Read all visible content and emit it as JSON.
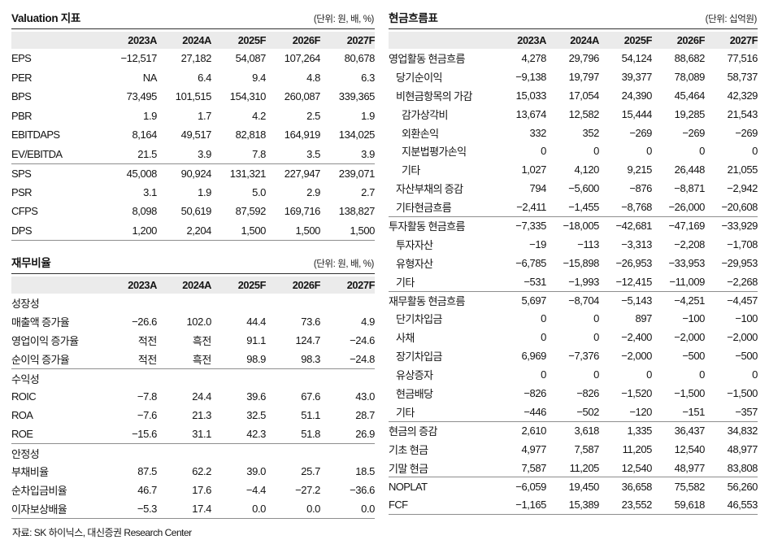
{
  "tables": {
    "valuation": {
      "title": "Valuation 지표",
      "unit": "(단위: 원, 배, %)",
      "columns": [
        "2023A",
        "2024A",
        "2025F",
        "2026F",
        "2027F"
      ],
      "rows": [
        {
          "label": "EPS",
          "values": [
            "−12,517",
            "27,182",
            "54,087",
            "107,264",
            "80,678"
          ]
        },
        {
          "label": "PER",
          "values": [
            "NA",
            "6.4",
            "9.4",
            "4.8",
            "6.3"
          ]
        },
        {
          "label": "BPS",
          "values": [
            "73,495",
            "101,515",
            "154,310",
            "260,087",
            "339,365"
          ]
        },
        {
          "label": "PBR",
          "values": [
            "1.9",
            "1.7",
            "4.2",
            "2.5",
            "1.9"
          ]
        },
        {
          "label": "EBITDAPS",
          "values": [
            "8,164",
            "49,517",
            "82,818",
            "164,919",
            "134,025"
          ]
        },
        {
          "label": "EV/EBITDA",
          "values": [
            "21.5",
            "3.9",
            "7.8",
            "3.5",
            "3.9"
          ]
        },
        {
          "label": "SPS",
          "sep": true,
          "values": [
            "45,008",
            "90,924",
            "131,321",
            "227,947",
            "239,071"
          ]
        },
        {
          "label": "PSR",
          "values": [
            "3.1",
            "1.9",
            "5.0",
            "2.9",
            "2.7"
          ]
        },
        {
          "label": "CFPS",
          "values": [
            "8,098",
            "50,619",
            "87,592",
            "169,716",
            "138,827"
          ]
        },
        {
          "label": "DPS",
          "values": [
            "1,200",
            "2,204",
            "1,500",
            "1,500",
            "1,500"
          ]
        }
      ]
    },
    "ratios": {
      "title": "재무비율",
      "unit": "(단위: 원, 배, %)",
      "columns": [
        "2023A",
        "2024A",
        "2025F",
        "2026F",
        "2027F"
      ],
      "rows": [
        {
          "label": "성장성",
          "values": []
        },
        {
          "label": "매출액 증가율",
          "values": [
            "−26.6",
            "102.0",
            "44.4",
            "73.6",
            "4.9"
          ]
        },
        {
          "label": "영업이익 증가율",
          "values": [
            "적전",
            "흑전",
            "91.1",
            "124.7",
            "−24.6"
          ]
        },
        {
          "label": "순이익 증가율",
          "values": [
            "적전",
            "흑전",
            "98.9",
            "98.3",
            "−24.8"
          ]
        },
        {
          "label": "수익성",
          "sep": true,
          "values": []
        },
        {
          "label": "ROIC",
          "values": [
            "−7.8",
            "24.4",
            "39.6",
            "67.6",
            "43.0"
          ]
        },
        {
          "label": "ROA",
          "values": [
            "−7.6",
            "21.3",
            "32.5",
            "51.1",
            "28.7"
          ]
        },
        {
          "label": "ROE",
          "values": [
            "−15.6",
            "31.1",
            "42.3",
            "51.8",
            "26.9"
          ]
        },
        {
          "label": "안정성",
          "sep": true,
          "values": []
        },
        {
          "label": "부채비율",
          "values": [
            "87.5",
            "62.2",
            "39.0",
            "25.7",
            "18.5"
          ]
        },
        {
          "label": "순차입금비율",
          "values": [
            "46.7",
            "17.6",
            "−4.4",
            "−27.2",
            "−36.6"
          ]
        },
        {
          "label": "이자보상배율",
          "values": [
            "−5.3",
            "17.4",
            "0.0",
            "0.0",
            "0.0"
          ]
        }
      ]
    },
    "cashflow": {
      "title": "현금흐름표",
      "unit": "(단위: 십억원)",
      "columns": [
        "2023A",
        "2024A",
        "2025F",
        "2026F",
        "2027F"
      ],
      "rows": [
        {
          "label": "영업활동 현금흐름",
          "indent": 0,
          "values": [
            "4,278",
            "29,796",
            "54,124",
            "88,682",
            "77,516"
          ]
        },
        {
          "label": "당기순이익",
          "indent": 1,
          "values": [
            "−9,138",
            "19,797",
            "39,377",
            "78,089",
            "58,737"
          ]
        },
        {
          "label": "비현금항목의 가감",
          "indent": 1,
          "values": [
            "15,033",
            "17,054",
            "24,390",
            "45,464",
            "42,329"
          ]
        },
        {
          "label": "감가상각비",
          "indent": 2,
          "values": [
            "13,674",
            "12,582",
            "15,444",
            "19,285",
            "21,543"
          ]
        },
        {
          "label": "외환손익",
          "indent": 2,
          "values": [
            "332",
            "352",
            "−269",
            "−269",
            "−269"
          ]
        },
        {
          "label": "지분법평가손익",
          "indent": 2,
          "values": [
            "0",
            "0",
            "0",
            "0",
            "0"
          ]
        },
        {
          "label": "기타",
          "indent": 2,
          "values": [
            "1,027",
            "4,120",
            "9,215",
            "26,448",
            "21,055"
          ]
        },
        {
          "label": "자산부채의 증감",
          "indent": 1,
          "values": [
            "794",
            "−5,600",
            "−876",
            "−8,871",
            "−2,942"
          ]
        },
        {
          "label": "기타현금흐름",
          "indent": 1,
          "values": [
            "−2,411",
            "−1,455",
            "−8,768",
            "−26,000",
            "−20,608"
          ]
        },
        {
          "label": "투자활동 현금흐름",
          "indent": 0,
          "sep": true,
          "values": [
            "−7,335",
            "−18,005",
            "−42,681",
            "−47,169",
            "−33,929"
          ]
        },
        {
          "label": "투자자산",
          "indent": 1,
          "values": [
            "−19",
            "−113",
            "−3,313",
            "−2,208",
            "−1,708"
          ]
        },
        {
          "label": "유형자산",
          "indent": 1,
          "values": [
            "−6,785",
            "−15,898",
            "−26,953",
            "−33,953",
            "−29,953"
          ]
        },
        {
          "label": "기타",
          "indent": 1,
          "values": [
            "−531",
            "−1,993",
            "−12,415",
            "−11,009",
            "−2,268"
          ]
        },
        {
          "label": "재무활동 현금흐름",
          "indent": 0,
          "sep": true,
          "values": [
            "5,697",
            "−8,704",
            "−5,143",
            "−4,251",
            "−4,457"
          ]
        },
        {
          "label": "단기차입금",
          "indent": 1,
          "values": [
            "0",
            "0",
            "897",
            "−100",
            "−100"
          ]
        },
        {
          "label": "사채",
          "indent": 1,
          "values": [
            "0",
            "0",
            "−2,400",
            "−2,000",
            "−2,000"
          ]
        },
        {
          "label": "장기차입금",
          "indent": 1,
          "values": [
            "6,969",
            "−7,376",
            "−2,000",
            "−500",
            "−500"
          ]
        },
        {
          "label": "유상증자",
          "indent": 1,
          "values": [
            "0",
            "0",
            "0",
            "0",
            "0"
          ]
        },
        {
          "label": "현금배당",
          "indent": 1,
          "values": [
            "−826",
            "−826",
            "−1,520",
            "−1,500",
            "−1,500"
          ]
        },
        {
          "label": "기타",
          "indent": 1,
          "values": [
            "−446",
            "−502",
            "−120",
            "−151",
            "−357"
          ]
        },
        {
          "label": "현금의 증감",
          "indent": 0,
          "sep": true,
          "values": [
            "2,610",
            "3,618",
            "1,335",
            "36,437",
            "34,832"
          ]
        },
        {
          "label": "기초 현금",
          "indent": 0,
          "values": [
            "4,977",
            "7,587",
            "11,205",
            "12,540",
            "48,977"
          ]
        },
        {
          "label": "기말 현금",
          "indent": 0,
          "values": [
            "7,587",
            "11,205",
            "12,540",
            "48,977",
            "83,808"
          ]
        },
        {
          "label": "NOPLAT",
          "indent": 0,
          "sep": true,
          "values": [
            "−6,059",
            "19,450",
            "36,658",
            "75,582",
            "56,260"
          ]
        },
        {
          "label": "FCF",
          "indent": 0,
          "values": [
            "−1,165",
            "15,389",
            "23,552",
            "59,618",
            "46,553"
          ]
        }
      ]
    }
  },
  "footer": {
    "source": "자료: SK 하이닉스, 대신증권 Research Center"
  }
}
